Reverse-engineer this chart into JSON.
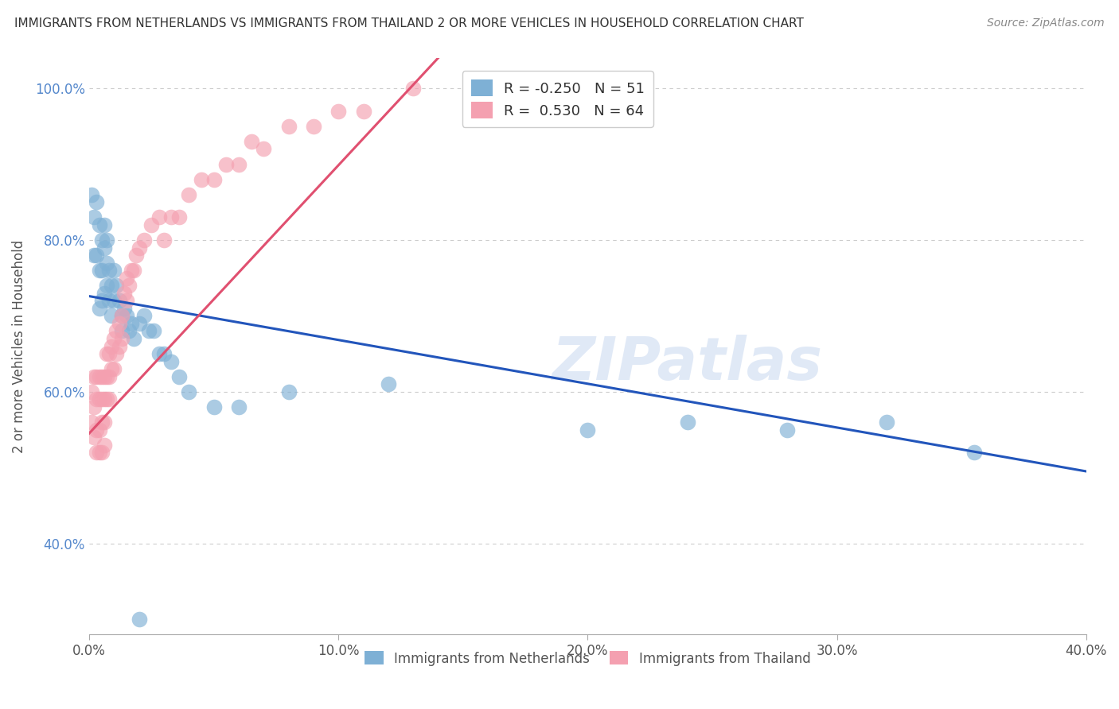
{
  "title": "IMMIGRANTS FROM NETHERLANDS VS IMMIGRANTS FROM THAILAND 2 OR MORE VEHICLES IN HOUSEHOLD CORRELATION CHART",
  "source": "Source: ZipAtlas.com",
  "ylabel": "2 or more Vehicles in Household",
  "xmin": 0.0,
  "xmax": 0.4,
  "ymin": 0.28,
  "ymax": 1.04,
  "R_netherlands": -0.25,
  "N_netherlands": 51,
  "R_thailand": 0.53,
  "N_thailand": 64,
  "color_netherlands": "#7EB0D5",
  "color_thailand": "#F4A0B0",
  "line_color_netherlands": "#2255BB",
  "line_color_thailand": "#E05070",
  "watermark": "ZIPatlas",
  "nl_trend_x0": 0.0,
  "nl_trend_y0": 0.726,
  "nl_trend_x1": 0.4,
  "nl_trend_y1": 0.495,
  "th_trend_x0": 0.0,
  "th_trend_y0": 0.545,
  "th_trend_x1": 0.14,
  "th_trend_y1": 1.04,
  "netherlands_x": [
    0.001,
    0.002,
    0.002,
    0.003,
    0.003,
    0.004,
    0.004,
    0.004,
    0.005,
    0.005,
    0.005,
    0.006,
    0.006,
    0.006,
    0.007,
    0.007,
    0.007,
    0.008,
    0.008,
    0.009,
    0.009,
    0.01,
    0.01,
    0.011,
    0.012,
    0.013,
    0.013,
    0.014,
    0.015,
    0.016,
    0.017,
    0.018,
    0.02,
    0.022,
    0.024,
    0.026,
    0.028,
    0.03,
    0.033,
    0.036,
    0.04,
    0.05,
    0.06,
    0.08,
    0.12,
    0.2,
    0.24,
    0.28,
    0.32,
    0.355,
    0.02
  ],
  "netherlands_y": [
    0.86,
    0.83,
    0.78,
    0.85,
    0.78,
    0.82,
    0.76,
    0.71,
    0.8,
    0.76,
    0.72,
    0.82,
    0.79,
    0.73,
    0.8,
    0.77,
    0.74,
    0.76,
    0.72,
    0.74,
    0.7,
    0.76,
    0.72,
    0.74,
    0.72,
    0.7,
    0.68,
    0.71,
    0.7,
    0.68,
    0.69,
    0.67,
    0.69,
    0.7,
    0.68,
    0.68,
    0.65,
    0.65,
    0.64,
    0.62,
    0.6,
    0.58,
    0.58,
    0.6,
    0.61,
    0.55,
    0.56,
    0.55,
    0.56,
    0.52,
    0.3
  ],
  "thailand_x": [
    0.001,
    0.001,
    0.002,
    0.002,
    0.002,
    0.003,
    0.003,
    0.003,
    0.003,
    0.004,
    0.004,
    0.004,
    0.004,
    0.005,
    0.005,
    0.005,
    0.005,
    0.006,
    0.006,
    0.006,
    0.006,
    0.007,
    0.007,
    0.007,
    0.008,
    0.008,
    0.008,
    0.009,
    0.009,
    0.01,
    0.01,
    0.011,
    0.011,
    0.012,
    0.012,
    0.013,
    0.013,
    0.014,
    0.015,
    0.015,
    0.016,
    0.017,
    0.018,
    0.019,
    0.02,
    0.022,
    0.025,
    0.028,
    0.03,
    0.033,
    0.036,
    0.04,
    0.045,
    0.05,
    0.055,
    0.06,
    0.065,
    0.07,
    0.08,
    0.09,
    0.1,
    0.11,
    0.13,
    0.16
  ],
  "thailand_y": [
    0.6,
    0.56,
    0.62,
    0.58,
    0.54,
    0.62,
    0.59,
    0.55,
    0.52,
    0.62,
    0.59,
    0.55,
    0.52,
    0.62,
    0.59,
    0.56,
    0.52,
    0.62,
    0.59,
    0.56,
    0.53,
    0.65,
    0.62,
    0.59,
    0.65,
    0.62,
    0.59,
    0.66,
    0.63,
    0.67,
    0.63,
    0.68,
    0.65,
    0.69,
    0.66,
    0.7,
    0.67,
    0.73,
    0.75,
    0.72,
    0.74,
    0.76,
    0.76,
    0.78,
    0.79,
    0.8,
    0.82,
    0.83,
    0.8,
    0.83,
    0.83,
    0.86,
    0.88,
    0.88,
    0.9,
    0.9,
    0.93,
    0.92,
    0.95,
    0.95,
    0.97,
    0.97,
    1.0,
    0.99
  ],
  "yticks": [
    0.4,
    0.6,
    0.8,
    1.0
  ],
  "ytick_labels": [
    "40.0%",
    "60.0%",
    "80.0%",
    "100.0%"
  ],
  "xticks": [
    0.0,
    0.1,
    0.2,
    0.3,
    0.4
  ],
  "xtick_labels": [
    "0.0%",
    "10.0%",
    "20.0%",
    "30.0%",
    "40.0%"
  ]
}
